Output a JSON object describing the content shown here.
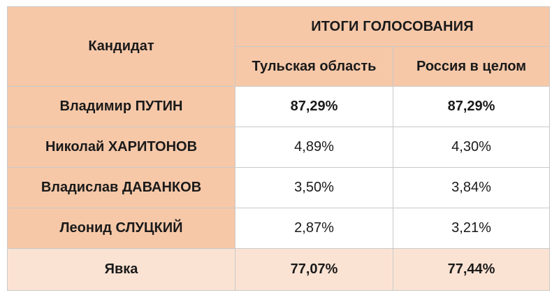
{
  "table": {
    "candidate_header": "Кандидат",
    "results_header": "ИТОГИ ГОЛОСОВАНИЯ",
    "region_header": "Тульская область",
    "russia_header": "Россия в целом",
    "rows": [
      {
        "name": "Владимир ПУТИН",
        "region": "87,29%",
        "russia": "87,29%"
      },
      {
        "name": "Николай ХАРИТОНОВ",
        "region": "4,89%",
        "russia": "4,30%"
      },
      {
        "name": "Владислав ДАВАНКОВ",
        "region": "3,50%",
        "russia": "3,84%"
      },
      {
        "name": "Леонид СЛУЦКИЙ",
        "region": "2,87%",
        "russia": "3,21%"
      }
    ],
    "turnout": {
      "label": "Явка",
      "region": "77,07%",
      "russia": "77,44%"
    }
  },
  "colors": {
    "header_fill": "#f6c8a8",
    "turnout_fill": "#fbe3d3",
    "grid_line": "#c9c9c9"
  }
}
